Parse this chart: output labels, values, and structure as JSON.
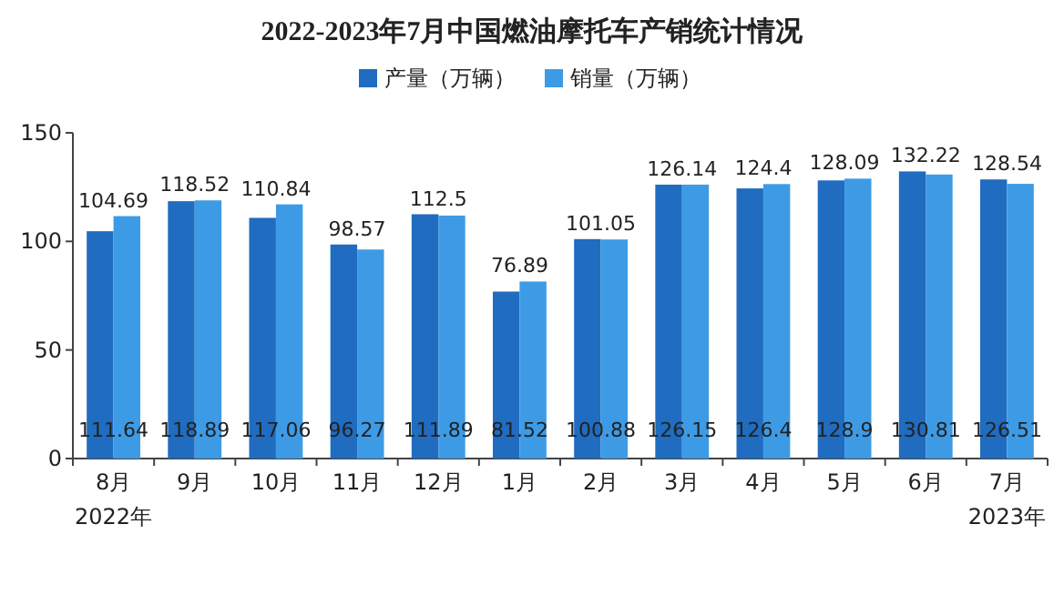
{
  "chart_data": {
    "type": "bar",
    "title": "2022-2023年7月中国燃油摩托车产销统计情况",
    "categories": [
      "8月",
      "9月",
      "10月",
      "11月",
      "12月",
      "1月",
      "2月",
      "3月",
      "4月",
      "5月",
      "6月",
      "7月"
    ],
    "series": [
      {
        "name": "产量（万辆）",
        "color": "#1f6cc0",
        "values": [
          104.69,
          118.52,
          110.84,
          98.57,
          112.5,
          76.89,
          101.05,
          126.14,
          124.4,
          128.09,
          132.22,
          128.54
        ]
      },
      {
        "name": "销量（万辆）",
        "color": "#3d9be6",
        "values": [
          111.64,
          118.89,
          117.06,
          96.27,
          111.89,
          81.52,
          100.88,
          126.15,
          126.4,
          128.9,
          130.81,
          126.51
        ]
      }
    ],
    "ylim": [
      0,
      150
    ],
    "yticks": [
      0,
      50,
      100,
      150
    ],
    "data_labels": true,
    "legend": "top",
    "annotations": [
      "2022年",
      "2023年"
    ]
  }
}
